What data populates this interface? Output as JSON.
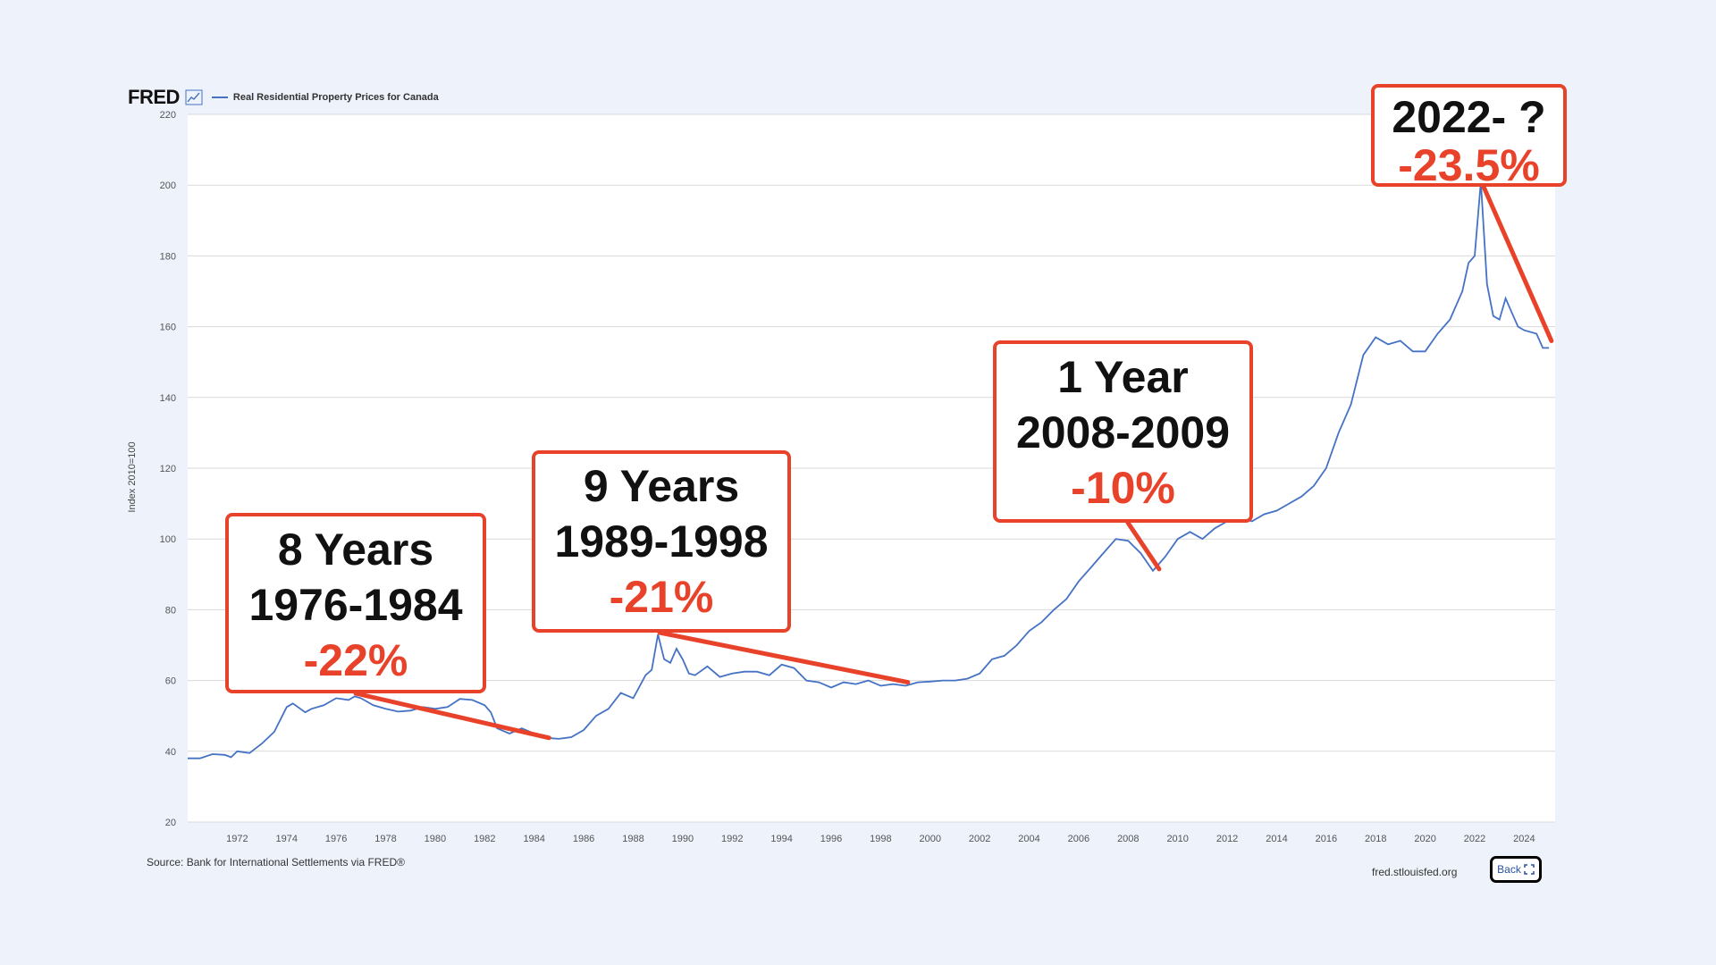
{
  "header": {
    "logo": "FRED",
    "icon": "line-chart-icon",
    "series_title": "Real Residential Property Prices for Canada"
  },
  "source": "Source: Bank for International Settlements via FRED®",
  "site": "fred.stlouisfed.org",
  "back_button": {
    "label": "Back",
    "icon": "expand-arrows-icon"
  },
  "colors": {
    "line": "#4572c4",
    "accent": "#e8432a",
    "background": "#edf2fb"
  },
  "annotations": [
    {
      "line1": "8 Years",
      "line2": "1976-1984",
      "pct": "-22%"
    },
    {
      "line1": "9 Years",
      "line2": "1989-1998",
      "pct": "-21%"
    },
    {
      "line1": "1 Year",
      "line2": "2008-2009",
      "pct": "-10%"
    },
    {
      "line1": "2022- ?",
      "line2": "",
      "pct": "-23.5%"
    }
  ],
  "chart_data": {
    "type": "line",
    "title": "Real Residential Property Prices for Canada",
    "ylabel": "Index 2010=100",
    "xlabel": "",
    "ylim": [
      20,
      220
    ],
    "xlim": [
      1970.0,
      2025.25
    ],
    "yticks": [
      20,
      40,
      60,
      80,
      100,
      120,
      140,
      160,
      180,
      200,
      220
    ],
    "xticks": [
      1972,
      1974,
      1976,
      1978,
      1980,
      1982,
      1984,
      1986,
      1988,
      1990,
      1992,
      1994,
      1996,
      1998,
      2000,
      2002,
      2004,
      2006,
      2008,
      2010,
      2012,
      2014,
      2016,
      2018,
      2020,
      2022,
      2024
    ],
    "grid": true,
    "series": [
      {
        "name": "Real Residential Property Prices for Canada",
        "x": [
          1970.0,
          1970.5,
          1971.0,
          1971.5,
          1971.75,
          1972.0,
          1972.5,
          1973.0,
          1973.5,
          1974.0,
          1974.25,
          1974.75,
          1975.0,
          1975.5,
          1976.0,
          1976.5,
          1976.75,
          1977.0,
          1977.5,
          1978.0,
          1978.5,
          1979.0,
          1979.5,
          1980.0,
          1980.5,
          1981.0,
          1981.5,
          1982.0,
          1982.25,
          1982.5,
          1983.0,
          1983.5,
          1984.0,
          1984.5,
          1985.0,
          1985.5,
          1986.0,
          1986.5,
          1987.0,
          1987.5,
          1988.0,
          1988.5,
          1988.75,
          1989.0,
          1989.25,
          1989.5,
          1989.75,
          1990.0,
          1990.25,
          1990.5,
          1991.0,
          1991.5,
          1992.0,
          1992.5,
          1993.0,
          1993.5,
          1994.0,
          1994.5,
          1995.0,
          1995.5,
          1996.0,
          1996.5,
          1997.0,
          1997.5,
          1998.0,
          1998.5,
          1999.0,
          1999.5,
          2000.0,
          2000.5,
          2001.0,
          2001.5,
          2002.0,
          2002.5,
          2003.0,
          2003.5,
          2004.0,
          2004.5,
          2005.0,
          2005.5,
          2006.0,
          2006.5,
          2007.0,
          2007.5,
          2008.0,
          2008.5,
          2009.0,
          2009.5,
          2010.0,
          2010.5,
          2011.0,
          2011.5,
          2012.0,
          2012.5,
          2013.0,
          2013.5,
          2014.0,
          2014.5,
          2015.0,
          2015.5,
          2016.0,
          2016.5,
          2017.0,
          2017.5,
          2018.0,
          2018.5,
          2019.0,
          2019.5,
          2020.0,
          2020.5,
          2021.0,
          2021.5,
          2021.75,
          2022.0,
          2022.25,
          2022.5,
          2022.75,
          2023.0,
          2023.25,
          2023.5,
          2023.75,
          2024.0,
          2024.5,
          2024.75,
          2025.0
        ],
        "y": [
          38.0,
          38.0,
          39.2,
          39.0,
          38.3,
          40.0,
          39.5,
          42.2,
          45.5,
          52.5,
          53.5,
          51.0,
          52.0,
          53.0,
          55.0,
          54.5,
          55.5,
          55.0,
          53.0,
          52.0,
          51.2,
          51.5,
          52.5,
          52.0,
          52.5,
          54.8,
          54.5,
          53.0,
          51.0,
          46.5,
          45.0,
          46.5,
          45.0,
          43.8,
          43.5,
          44.0,
          46.0,
          50.0,
          52.0,
          56.5,
          55.0,
          61.5,
          63.0,
          73.0,
          66.0,
          65.0,
          69.0,
          66.0,
          62.0,
          61.5,
          64.0,
          61.0,
          62.0,
          62.5,
          62.5,
          61.5,
          64.5,
          63.5,
          60.0,
          59.5,
          58.0,
          59.5,
          59.0,
          60.0,
          58.5,
          59.0,
          58.5,
          59.5,
          59.7,
          60.0,
          60.0,
          60.5,
          62.0,
          66.0,
          67.0,
          70.0,
          74.0,
          76.5,
          80.0,
          83.0,
          88.0,
          92.0,
          96.0,
          100.0,
          99.5,
          96.0,
          91.0,
          95.0,
          100.0,
          102.0,
          100.0,
          103.0,
          105.0,
          106.0,
          105.0,
          107.0,
          108.0,
          110.0,
          112.0,
          115.0,
          120.0,
          130.0,
          138.0,
          152.0,
          157.0,
          155.0,
          156.0,
          153.0,
          153.0,
          158.0,
          162.0,
          170.0,
          178.0,
          180.0,
          201.0,
          172.0,
          163.0,
          162.0,
          168.0,
          164.0,
          160.0,
          159.0,
          158.0,
          154.0,
          154.0
        ]
      }
    ]
  }
}
